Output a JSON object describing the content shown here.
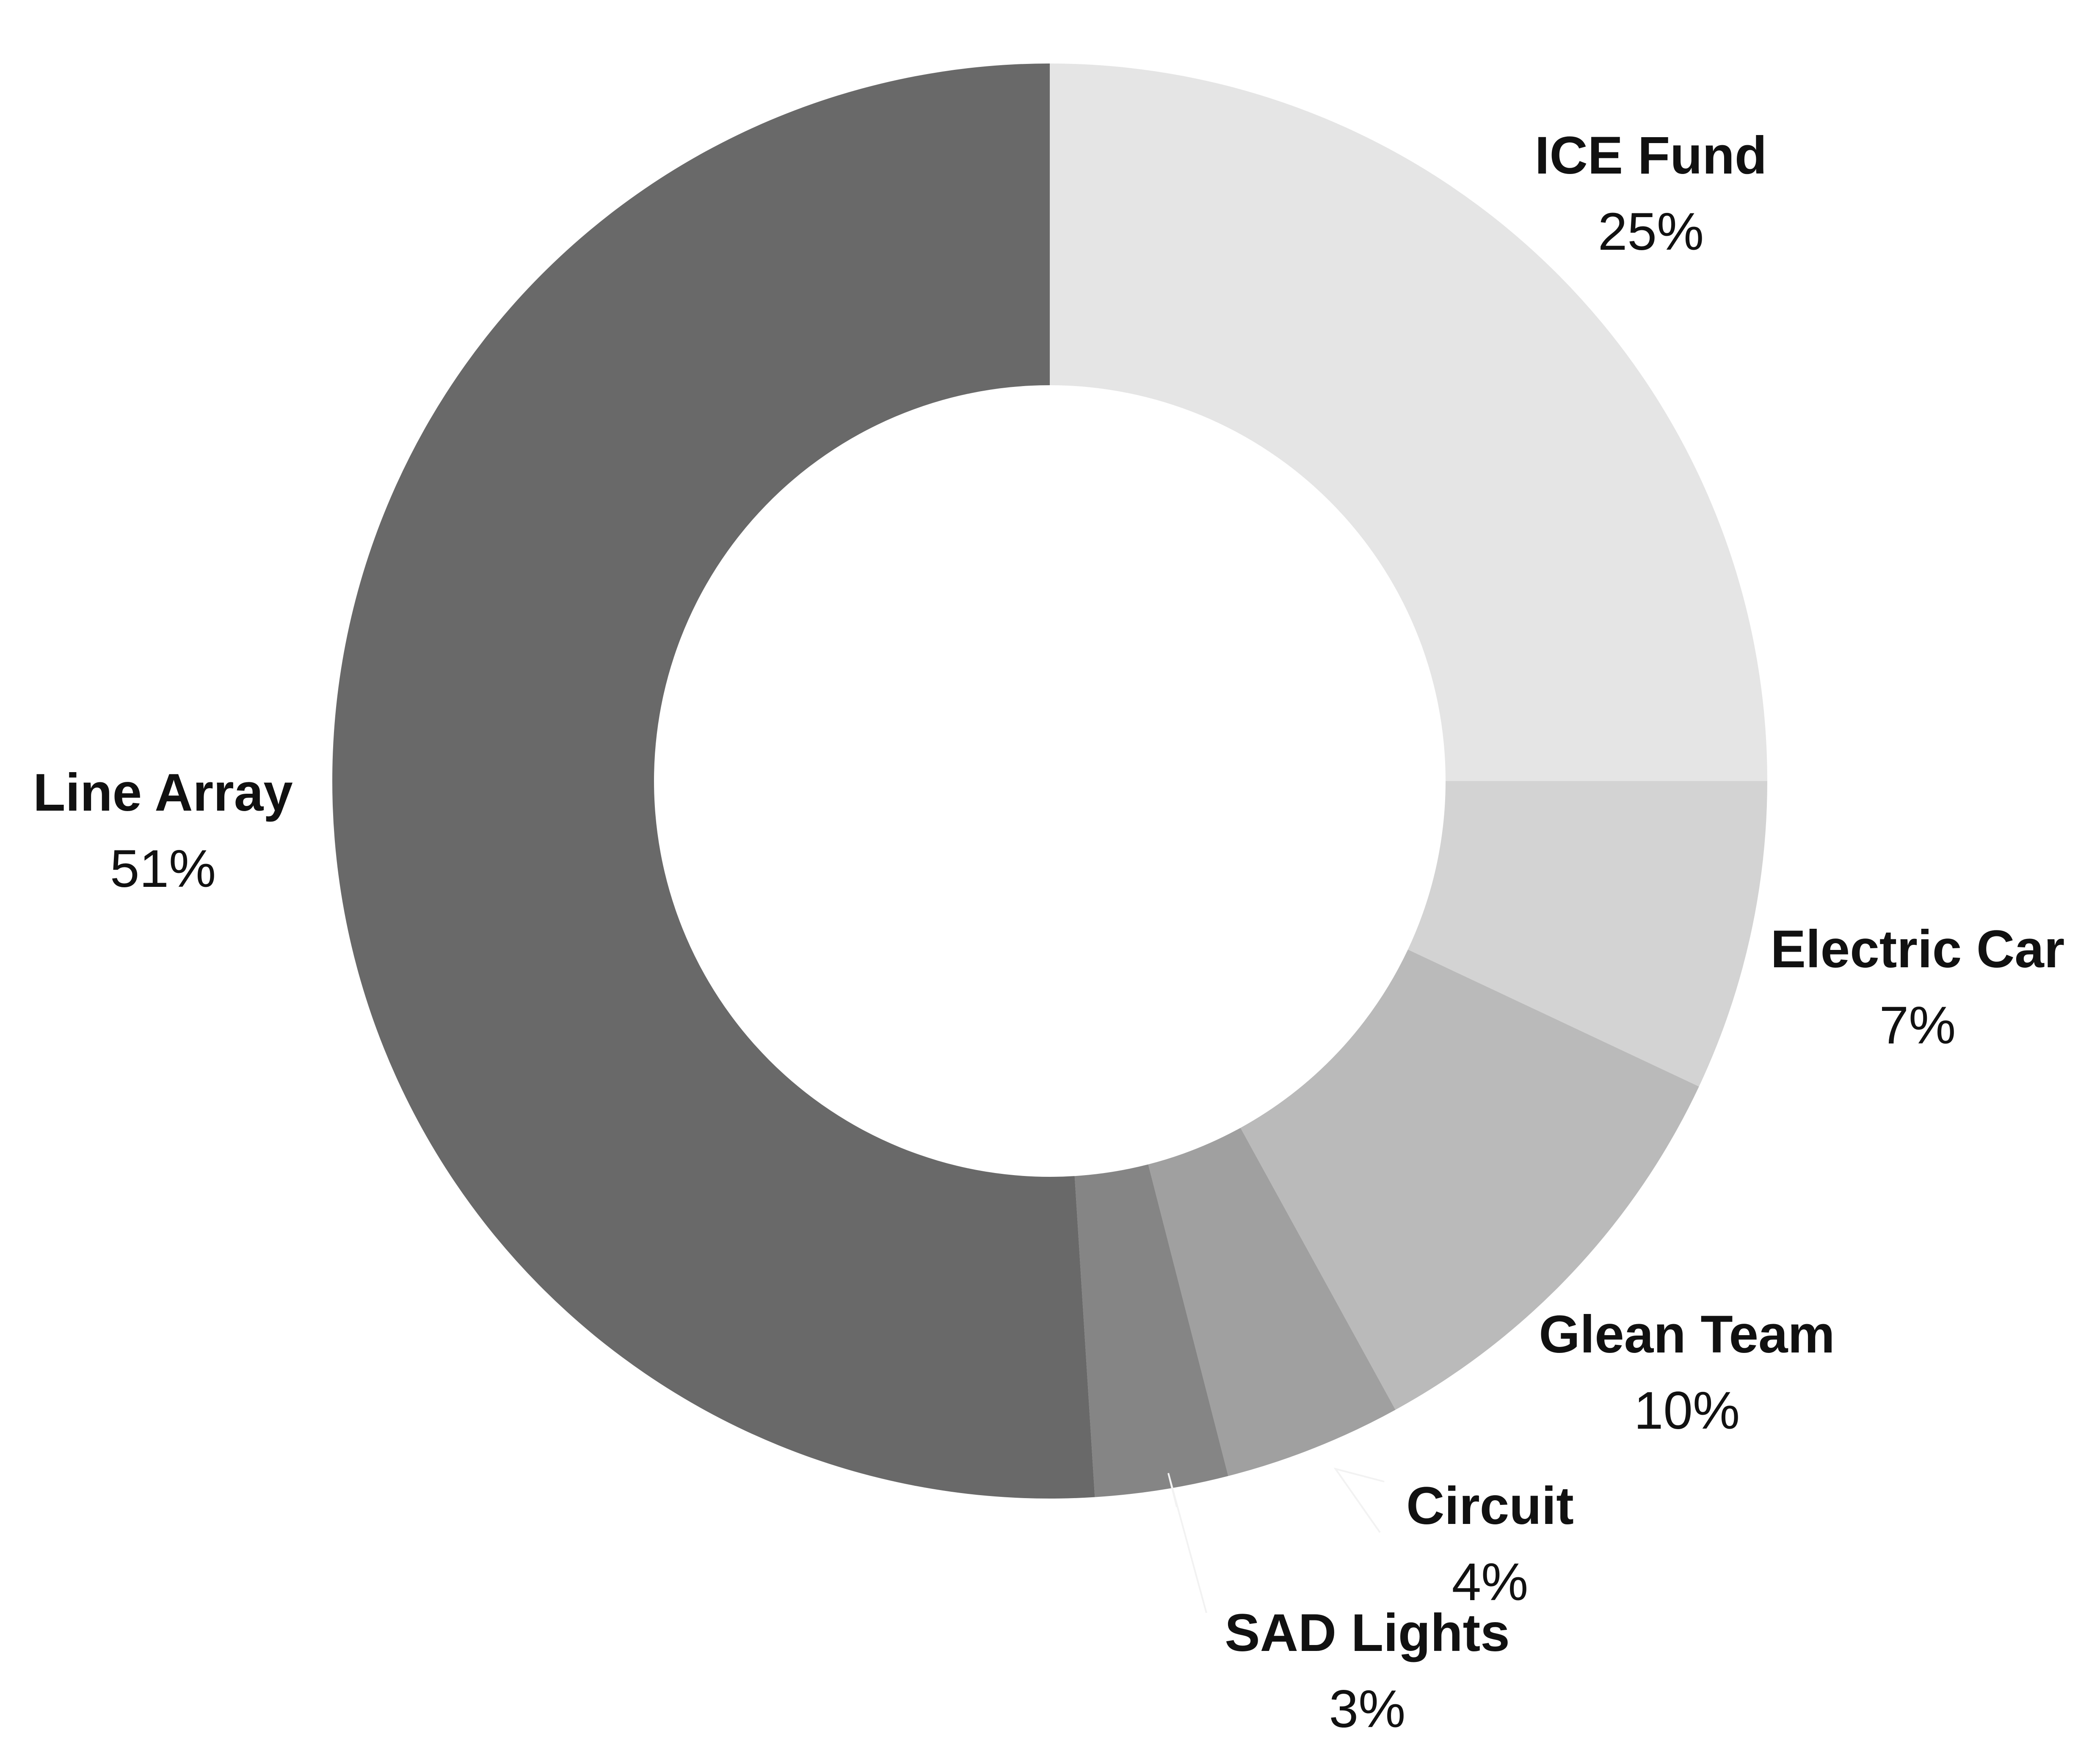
{
  "chart_data": {
    "type": "pie",
    "variant": "donut",
    "title": "",
    "slices": [
      {
        "label": "ICE Fund",
        "value": 25,
        "value_label": "25%",
        "color": "#e5e5e5"
      },
      {
        "label": "Electric Car",
        "value": 7,
        "value_label": "7%",
        "color": "#d3d3d3"
      },
      {
        "label": "Glean Team",
        "value": 10,
        "value_label": "10%",
        "color": "#bababa"
      },
      {
        "label": "Circuit",
        "value": 4,
        "value_label": "4%",
        "color": "#a0a0a0"
      },
      {
        "label": "SAD Lights",
        "value": 3,
        "value_label": "3%",
        "color": "#858585"
      },
      {
        "label": "Line Array",
        "value": 51,
        "value_label": "51%",
        "color": "#696969"
      }
    ],
    "start_angle": "12 o'clock",
    "direction": "clockwise",
    "legend": "none"
  }
}
